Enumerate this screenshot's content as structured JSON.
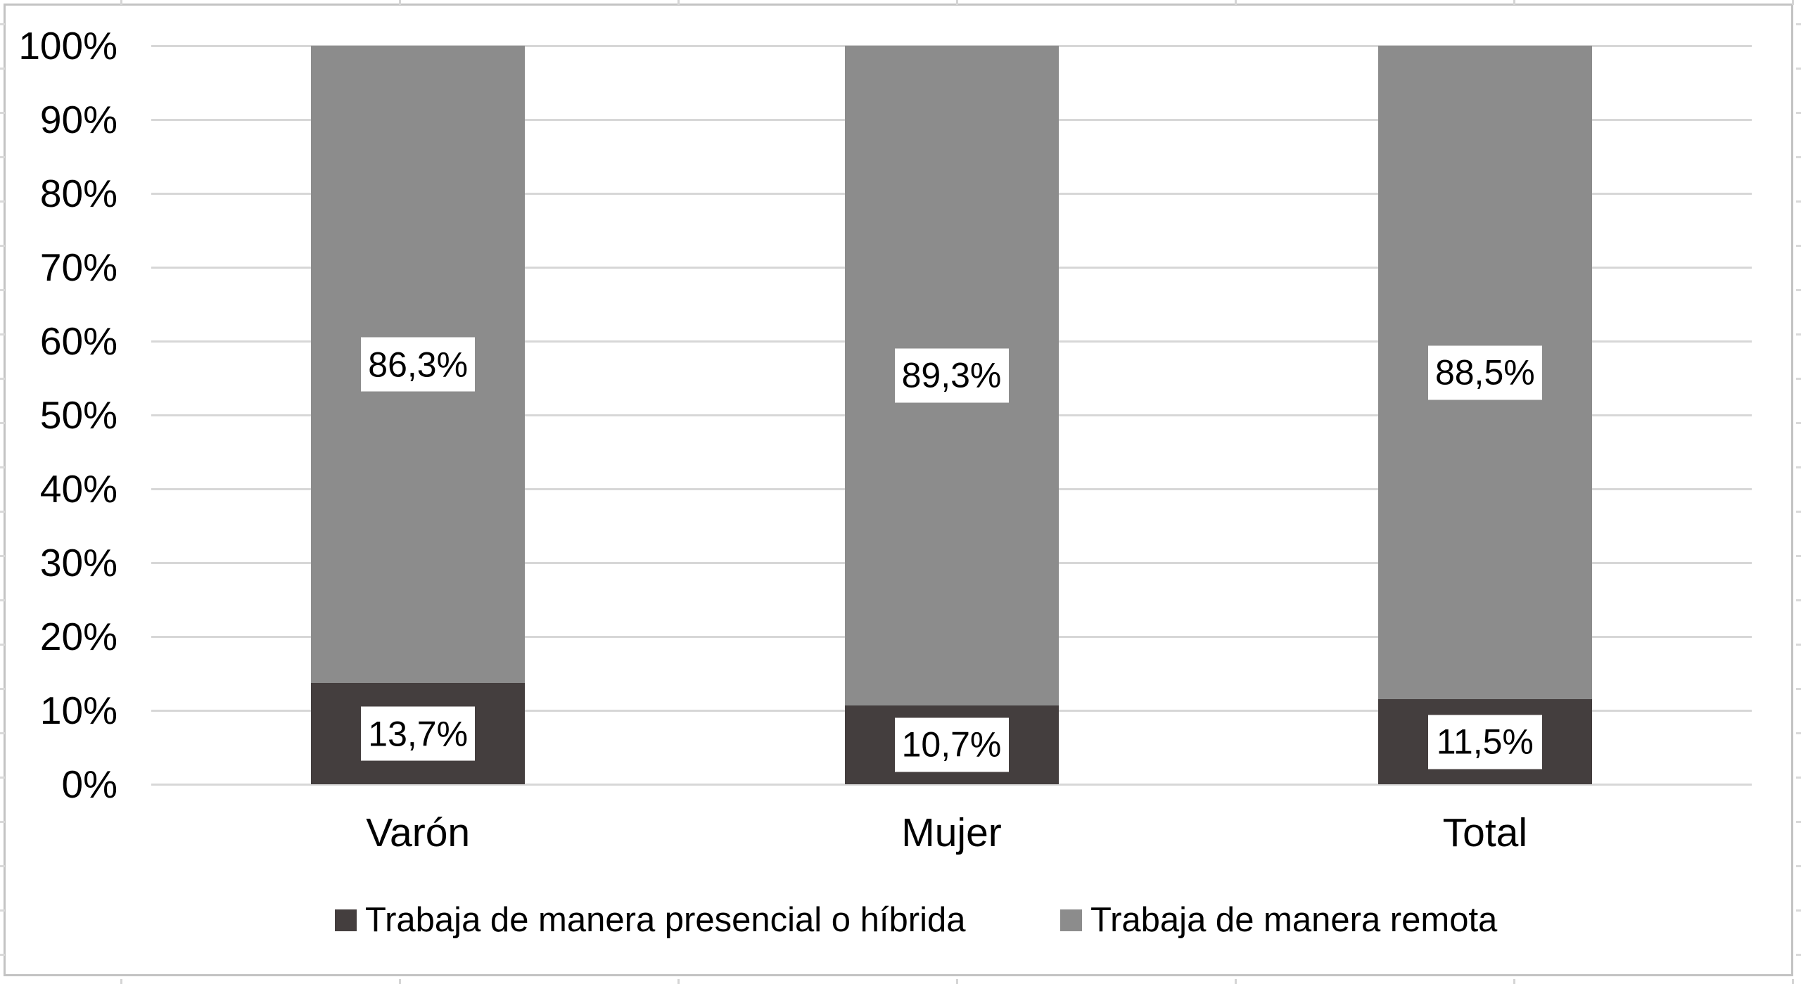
{
  "chart_data": {
    "type": "bar",
    "variant": "stacked-100-percent-column",
    "categories": [
      "Varón",
      "Mujer",
      "Total"
    ],
    "series": [
      {
        "name": "Trabaja de manera presencial o híbrida",
        "values": [
          13.7,
          10.7,
          11.5
        ],
        "labels": [
          "13,7%",
          "10,7%",
          "11,5%"
        ],
        "color": "#443e3e"
      },
      {
        "name": "Trabaja de manera remota",
        "values": [
          86.3,
          89.3,
          88.5
        ],
        "labels": [
          "86,3%",
          "89,3%",
          "88,5%"
        ],
        "color": "#8c8c8c"
      }
    ],
    "title": "",
    "xlabel": "",
    "ylabel": "",
    "y_axis": {
      "min": 0,
      "max": 100,
      "tick_step": 10,
      "tick_labels": [
        "0%",
        "10%",
        "20%",
        "30%",
        "40%",
        "50%",
        "60%",
        "70%",
        "80%",
        "90%",
        "100%"
      ],
      "grid": true
    },
    "legend_position": "bottom",
    "data_label_style": "white-box-black-text"
  },
  "colors": {
    "background": "#ffffff",
    "gridline": "#d7d7d7",
    "outer_border": "#c3c3c3",
    "text": "#000000",
    "data_label_box_bg": "#ffffff"
  }
}
